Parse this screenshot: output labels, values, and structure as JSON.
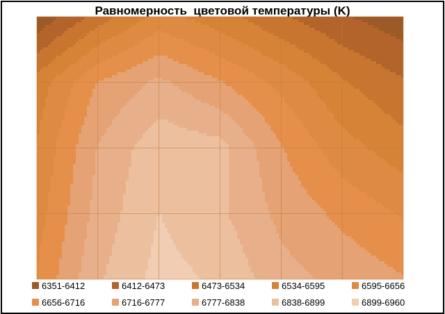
{
  "chart_data": {
    "type": "heatmap",
    "subtype": "contour",
    "title": "Равномерность  цветовой температуры (K)",
    "xlabel": "",
    "ylabel": "",
    "grid": true,
    "legend_position": "bottom",
    "grid_columns": 7,
    "grid_rows": 5,
    "bands": [
      {
        "label": "6351-6412",
        "min": 6351,
        "max": 6412,
        "color": "#9c5a26"
      },
      {
        "label": "6412-6473",
        "min": 6412,
        "max": 6473,
        "color": "#b2642a"
      },
      {
        "label": "6473-6534",
        "min": 6473,
        "max": 6534,
        "color": "#c8752f"
      },
      {
        "label": "6534-6595",
        "min": 6534,
        "max": 6595,
        "color": "#d68237"
      },
      {
        "label": "6595-6656",
        "min": 6595,
        "max": 6656,
        "color": "#de8a43"
      },
      {
        "label": "6656-6716",
        "min": 6656,
        "max": 6716,
        "color": "#e58f4a"
      },
      {
        "label": "6716-6777",
        "min": 6716,
        "max": 6777,
        "color": "#e5a274"
      },
      {
        "label": "6777-6838",
        "min": 6777,
        "max": 6838,
        "color": "#e8b08a"
      },
      {
        "label": "6838-6899",
        "min": 6838,
        "max": 6899,
        "color": "#ecbf9f"
      },
      {
        "label": "6899-6960",
        "min": 6899,
        "max": 6960,
        "color": "#f0cdb3"
      }
    ],
    "values": [
      [
        6360,
        6500,
        6620,
        6560,
        6480,
        6420,
        6370
      ],
      [
        6560,
        6720,
        6790,
        6720,
        6640,
        6540,
        6480
      ],
      [
        6600,
        6780,
        6880,
        6860,
        6720,
        6620,
        6560
      ],
      [
        6630,
        6800,
        6900,
        6850,
        6760,
        6700,
        6650
      ],
      [
        6660,
        6830,
        6920,
        6890,
        6800,
        6760,
        6720
      ]
    ]
  },
  "colors": {
    "band_edge": "#b26a2e",
    "gridline": "#c27a3a",
    "frame": "#000000",
    "background": "#ffffff"
  }
}
